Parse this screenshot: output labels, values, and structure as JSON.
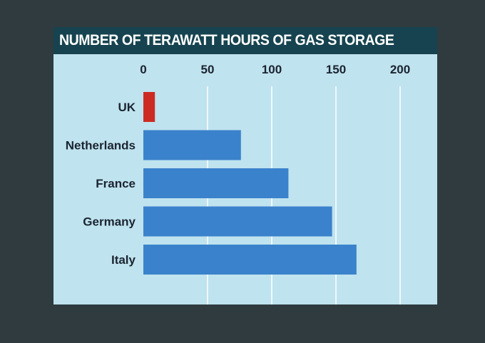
{
  "title": "NUMBER OF TERAWATT HOURS OF GAS STORAGE",
  "colors": {
    "page_background": "#2f3b3f",
    "card_background": "#bfe3ef",
    "title_background": "#16434f",
    "bar_default": "#3b82cc",
    "bar_highlight": "#cc2b23",
    "gridline": "#ffffff"
  },
  "chart_data": {
    "type": "bar",
    "orientation": "horizontal",
    "title": "NUMBER OF TERAWATT HOURS OF GAS STORAGE",
    "categories": [
      "UK",
      "Netherlands",
      "France",
      "Germany",
      "Italy"
    ],
    "values": [
      9,
      76,
      113,
      147,
      166
    ],
    "highlight": [
      "UK"
    ],
    "xlabel": "",
    "ylabel": "",
    "xlim": [
      0,
      200
    ],
    "x_ticks": [
      0,
      50,
      100,
      150,
      200
    ],
    "x_axis_position": "top",
    "grid": true,
    "legend": "none"
  }
}
